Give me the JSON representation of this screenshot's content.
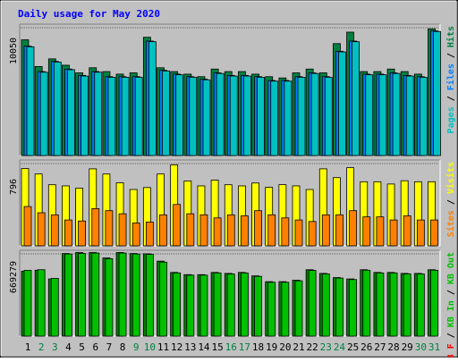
{
  "chart_data": {
    "type": "bar",
    "title": "Daily usage for May 2020",
    "categories": [
      "1",
      "2",
      "3",
      "4",
      "5",
      "6",
      "7",
      "8",
      "9",
      "10",
      "11",
      "12",
      "13",
      "14",
      "15",
      "16",
      "17",
      "18",
      "19",
      "20",
      "21",
      "22",
      "23",
      "24",
      "25",
      "26",
      "27",
      "28",
      "29",
      "30",
      "31"
    ],
    "weekend_days": [
      "2",
      "3",
      "9",
      "10",
      "16",
      "17",
      "23",
      "24",
      "30",
      "31"
    ],
    "panels": [
      {
        "id": "hits",
        "max_label": "10050",
        "ylim": [
          0,
          10050
        ],
        "right_label": [
          {
            "text": "Pages",
            "color": "#00C0C0"
          },
          {
            "text": "Files",
            "color": "#0080FF"
          },
          {
            "text": "Hits",
            "color": "#008040"
          }
        ],
        "series": [
          {
            "name": "Hits",
            "color": "#008040",
            "values": [
              9100,
              7000,
              7600,
              7100,
              6500,
              6900,
              6600,
              6400,
              6500,
              9300,
              6900,
              6600,
              6400,
              6200,
              6800,
              6600,
              6600,
              6400,
              6200,
              6100,
              6500,
              6800,
              6500,
              8800,
              9700,
              6600,
              6600,
              6800,
              6600,
              6400,
              9960
            ]
          },
          {
            "name": "Files",
            "color": "#0080FF",
            "values": [
              8600,
              6600,
              7400,
              6800,
              6300,
              6600,
              6200,
              6200,
              6200,
              9000,
              6700,
              6400,
              6200,
              6000,
              6500,
              6300,
              6300,
              6200,
              5900,
              5900,
              6200,
              6500,
              6200,
              8200,
              9000,
              6400,
              6400,
              6500,
              6300,
              6200,
              9800
            ]
          },
          {
            "name": "Pages",
            "color": "#00C0C0",
            "values": [
              8550,
              6550,
              7350,
              6750,
              6250,
              6550,
              6150,
              6150,
              6150,
              8950,
              6650,
              6350,
              6150,
              5950,
              6450,
              6250,
              6250,
              6150,
              5850,
              5850,
              6150,
              6450,
              6150,
              8150,
              8950,
              6350,
              6350,
              6450,
              6250,
              6150,
              9750
            ]
          }
        ]
      },
      {
        "id": "visits",
        "max_label": "796",
        "ylim": [
          0,
          796
        ],
        "right_label": [
          {
            "text": "Sites",
            "color": "#FF8000"
          },
          {
            "text": "Visits",
            "color": "#FFFF00"
          }
        ],
        "series": [
          {
            "name": "Visits",
            "color": "#FFFF00",
            "values": [
              748,
              695,
              591,
              580,
              558,
              745,
              695,
              610,
              545,
              564,
              695,
              784,
              628,
              580,
              636,
              591,
              580,
              608,
              566,
              592,
              580,
              545,
              745,
              660,
              756,
              620,
              620,
              598,
              630,
              620,
              620
            ]
          },
          {
            "name": "Sites",
            "color": "#FF8000",
            "values": [
              380,
              320,
              300,
              250,
              240,
              360,
              340,
              310,
              220,
              230,
              300,
              400,
              310,
              300,
              270,
              300,
              290,
              340,
              300,
              270,
              250,
              235,
              300,
              300,
              340,
              280,
              280,
              250,
              290,
              250,
              250
            ]
          }
        ]
      },
      {
        "id": "kbytes",
        "max_label": "669279",
        "ylim": [
          0,
          669279
        ],
        "right_label": [
          {
            "text": "KB F",
            "color": "#FF0000"
          },
          {
            "text": "KB In",
            "color": "#00C000"
          },
          {
            "text": "KB Out",
            "color": "#00C000"
          }
        ],
        "series": [
          {
            "name": "KB F",
            "color": "#008000",
            "values": [
              528000,
              536000,
              465000,
              672000,
              680000,
              680000,
              636000,
              680000,
              672000,
              670000,
              610000,
              518000,
              500000,
              500000,
              518000,
              510000,
              518000,
              490000,
              443000,
              443000,
              455000,
              540000,
              510000,
              476000,
              465000,
              540000,
              518000,
              518000,
              510000,
              510000,
              540000
            ]
          },
          {
            "name": "KB In",
            "color": "#00C000",
            "values": [
              535000,
              540000,
              470000,
              668000,
              673000,
              676000,
              630000,
              676000,
              668000,
              665000,
              602000,
              514000,
              496000,
              496000,
              514000,
              506000,
              514000,
              486000,
              438000,
              438000,
              450000,
              534000,
              506000,
              472000,
              460000,
              536000,
              514000,
              514000,
              506000,
              506000,
              536000
            ]
          }
        ]
      }
    ]
  }
}
